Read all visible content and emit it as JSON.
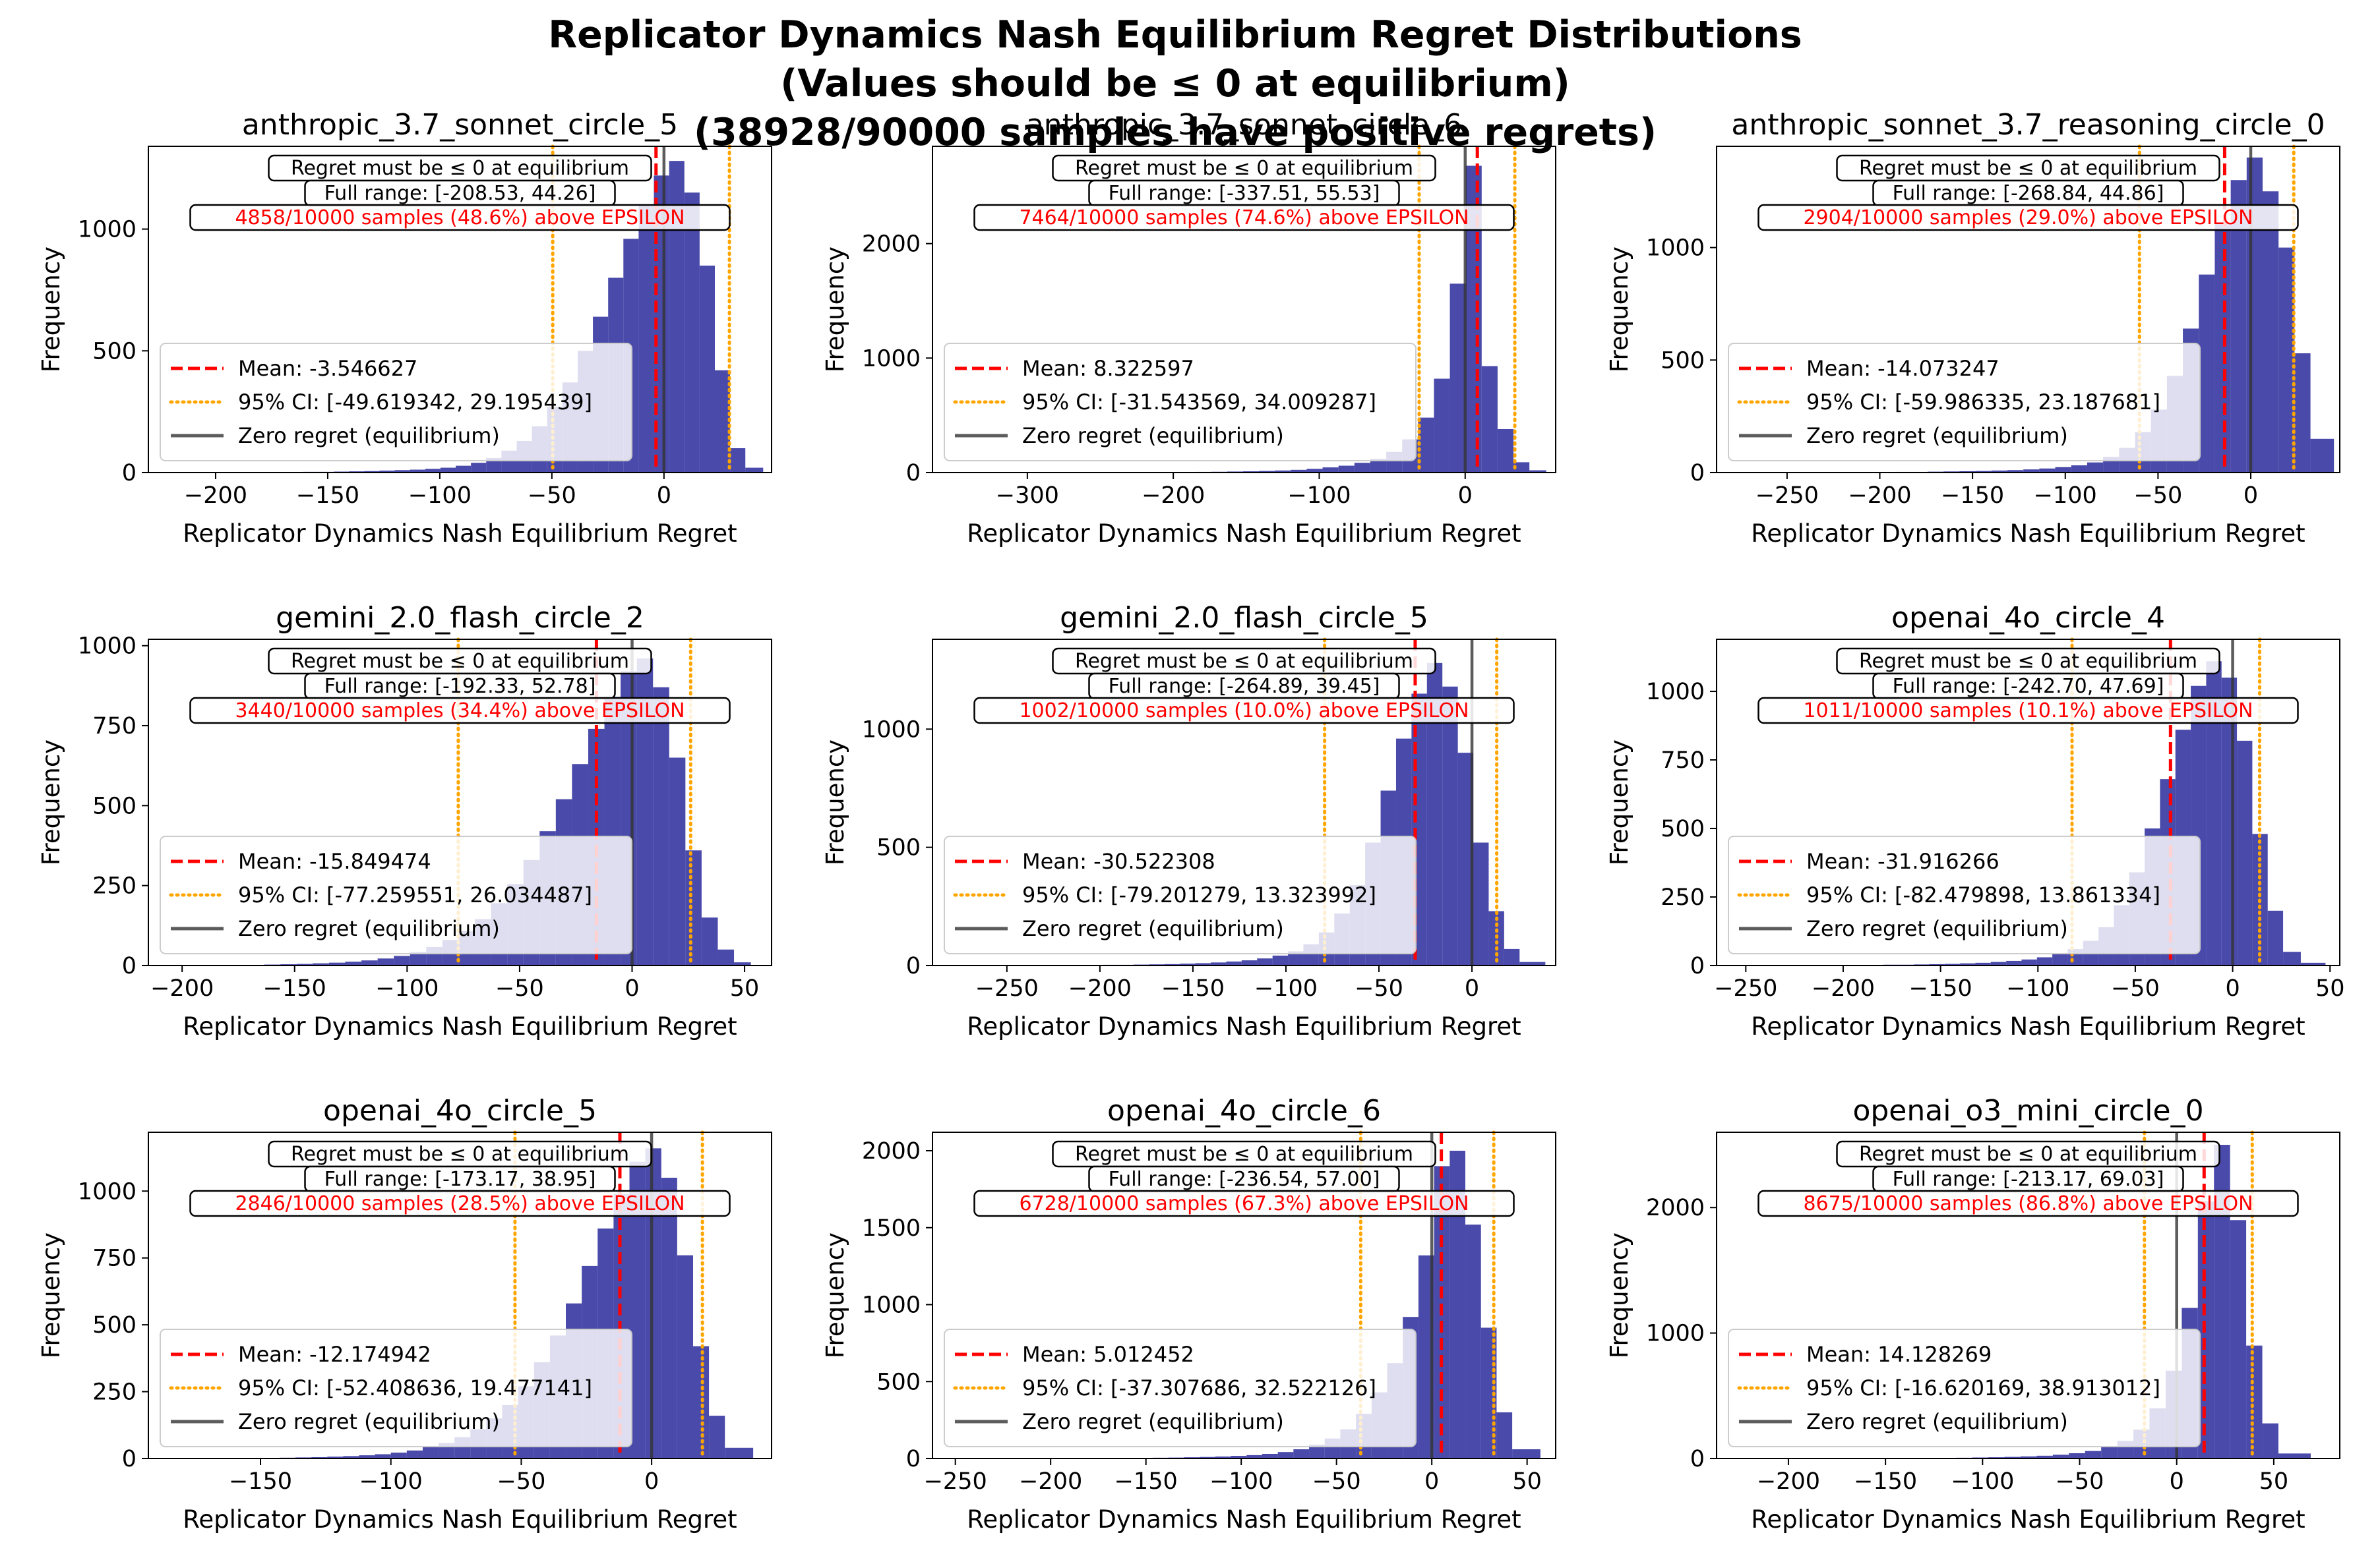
{
  "figure": {
    "title_lines": [
      "Replicator Dynamics Nash Equilibrium Regret Distributions",
      "(Values should be ≤ 0 at equilibrium)",
      "(38928/90000 samples have positive regrets)"
    ]
  },
  "colors": {
    "bars": "#2a2a9c",
    "mean": "#ff0000",
    "ci": "#ffa500",
    "zero": "#333333",
    "warning_text": "#ff0000"
  },
  "chart_data": [
    {
      "type": "histogram",
      "title": "anthropic_3.7_sonnet_circle_5",
      "xlabel": "Replicator Dynamics Nash Equilibrium Regret",
      "ylabel": "Frequency",
      "xlim": [
        -230,
        48
      ],
      "ylim": [
        0,
        1340
      ],
      "xticks": [
        -200,
        -150,
        -100,
        -50,
        0
      ],
      "yticks": [
        0,
        500,
        1000
      ],
      "bin_edges": [
        -208.53,
        -201.7,
        -194.9,
        -188.1,
        -181.3,
        -174.5,
        -167.7,
        -160.9,
        -154.1,
        -147.3,
        -140.5,
        -133.7,
        -126.9,
        -120.1,
        -113.3,
        -106.5,
        -99.7,
        -92.9,
        -86.1,
        -79.3,
        -72.5,
        -65.7,
        -58.9,
        -52.1,
        -45.3,
        -38.5,
        -31.7,
        -24.9,
        -18.1,
        -11.3,
        -4.5,
        2.3,
        9.1,
        15.9,
        22.7,
        29.5,
        36.3,
        44.26
      ],
      "counts": [
        1,
        1,
        1,
        1,
        1,
        2,
        2,
        3,
        3,
        4,
        5,
        6,
        8,
        10,
        12,
        15,
        20,
        28,
        40,
        60,
        90,
        130,
        190,
        270,
        370,
        500,
        640,
        800,
        960,
        1100,
        1220,
        1280,
        1150,
        850,
        420,
        100,
        20
      ],
      "mean": -3.546627,
      "ci": [
        -49.619342,
        29.195439
      ],
      "legend": [
        "Mean: -3.546627",
        "95% CI: [-49.619342, 29.195439]",
        "Zero regret (equilibrium)"
      ],
      "annotations": {
        "rule": "Regret must be ≤ 0 at equilibrium",
        "range": "Full range: [-208.53, 44.26]",
        "above": "4858/10000 samples (48.6%) above EPSILON"
      }
    },
    {
      "type": "histogram",
      "title": "anthropic_3.7_sonnet_circle_6",
      "xlabel": "Replicator Dynamics Nash Equilibrium Regret",
      "ylabel": "Frequency",
      "xlim": [
        -365,
        62
      ],
      "ylim": [
        0,
        2850
      ],
      "xticks": [
        -300,
        -200,
        -100,
        0
      ],
      "yticks": [
        0,
        1000,
        2000
      ],
      "bin_edges": [
        -337.51,
        -326.6,
        -315.7,
        -304.8,
        -293.9,
        -283.0,
        -272.1,
        -261.2,
        -250.3,
        -239.4,
        -228.5,
        -217.6,
        -206.7,
        -195.8,
        -184.9,
        -174.0,
        -163.1,
        -152.2,
        -141.3,
        -130.4,
        -119.5,
        -108.6,
        -97.7,
        -86.8,
        -75.9,
        -65.0,
        -54.1,
        -43.2,
        -32.3,
        -21.4,
        -10.5,
        0.4,
        11.3,
        22.2,
        33.1,
        44.0,
        55.53
      ],
      "counts": [
        1,
        1,
        1,
        1,
        1,
        1,
        1,
        2,
        2,
        2,
        3,
        3,
        4,
        5,
        6,
        7,
        9,
        11,
        14,
        18,
        24,
        32,
        45,
        60,
        85,
        120,
        180,
        290,
        480,
        820,
        1650,
        2680,
        930,
        380,
        90,
        20
      ],
      "mean": 8.322597,
      "ci": [
        -31.543569,
        34.009287
      ],
      "legend": [
        "Mean: 8.322597",
        "95% CI: [-31.543569, 34.009287]",
        "Zero regret (equilibrium)"
      ],
      "annotations": {
        "rule": "Regret must be ≤ 0 at equilibrium",
        "range": "Full range: [-337.51, 55.53]",
        "above": "7464/10000 samples (74.6%) above EPSILON"
      }
    },
    {
      "type": "histogram",
      "title": "anthropic_sonnet_3.7_reasoning_circle_0",
      "xlabel": "Replicator Dynamics Nash Equilibrium Regret",
      "ylabel": "Frequency",
      "xlim": [
        -288,
        48
      ],
      "ylim": [
        0,
        1450
      ],
      "xticks": [
        -250,
        -200,
        -150,
        -100,
        -50,
        0
      ],
      "yticks": [
        0,
        500,
        1000
      ],
      "bin_edges": [
        -268.84,
        -260.2,
        -251.6,
        -243.0,
        -234.4,
        -225.8,
        -217.2,
        -208.6,
        -200.0,
        -191.4,
        -182.8,
        -174.2,
        -165.6,
        -157.0,
        -148.4,
        -139.8,
        -131.2,
        -122.6,
        -114.0,
        -105.4,
        -96.8,
        -88.2,
        -79.6,
        -71.0,
        -62.4,
        -53.8,
        -45.2,
        -36.6,
        -28.0,
        -19.4,
        -10.8,
        -2.2,
        6.4,
        15.0,
        23.6,
        32.2,
        44.86
      ],
      "counts": [
        1,
        1,
        1,
        1,
        1,
        1,
        2,
        2,
        2,
        3,
        3,
        4,
        5,
        6,
        7,
        9,
        11,
        14,
        18,
        24,
        32,
        45,
        70,
        110,
        180,
        280,
        430,
        640,
        880,
        1110,
        1300,
        1400,
        1250,
        1000,
        530,
        150
      ],
      "mean": -14.073247,
      "ci": [
        -59.986335,
        23.187681
      ],
      "legend": [
        "Mean: -14.073247",
        "95% CI: [-59.986335, 23.187681]",
        "Zero regret (equilibrium)"
      ],
      "annotations": {
        "rule": "Regret must be ≤ 0 at equilibrium",
        "range": "Full range: [-268.84, 44.86]",
        "above": "2904/10000 samples (29.0%) above EPSILON"
      }
    },
    {
      "type": "histogram",
      "title": "gemini_2.0_flash_circle_2",
      "xlabel": "Replicator Dynamics Nash Equilibrium Regret",
      "ylabel": "Frequency",
      "xlim": [
        -215,
        62
      ],
      "ylim": [
        0,
        1020
      ],
      "xticks": [
        -200,
        -150,
        -100,
        -50,
        0,
        50
      ],
      "yticks": [
        0,
        250,
        500,
        750,
        1000
      ],
      "bin_edges": [
        -192.33,
        -185.1,
        -177.9,
        -170.7,
        -163.5,
        -156.3,
        -149.1,
        -141.9,
        -134.7,
        -127.5,
        -120.3,
        -113.1,
        -105.9,
        -98.7,
        -91.5,
        -84.3,
        -77.1,
        -69.9,
        -62.7,
        -55.5,
        -48.3,
        -41.1,
        -33.9,
        -26.7,
        -19.5,
        -12.3,
        -5.1,
        2.1,
        9.3,
        16.5,
        23.7,
        30.9,
        38.1,
        45.3,
        52.78
      ],
      "counts": [
        1,
        1,
        2,
        2,
        3,
        4,
        5,
        7,
        9,
        12,
        16,
        22,
        30,
        42,
        58,
        80,
        108,
        145,
        195,
        255,
        330,
        420,
        520,
        630,
        740,
        840,
        920,
        960,
        870,
        650,
        360,
        150,
        50,
        10
      ],
      "mean": -15.849474,
      "ci": [
        -77.259551,
        26.034487
      ],
      "legend": [
        "Mean: -15.849474",
        "95% CI: [-77.259551, 26.034487]",
        "Zero regret (equilibrium)"
      ],
      "annotations": {
        "rule": "Regret must be ≤ 0 at equilibrium",
        "range": "Full range: [-192.33, 52.78]",
        "above": "3440/10000 samples (34.4%) above EPSILON"
      }
    },
    {
      "type": "histogram",
      "title": "gemini_2.0_flash_circle_5",
      "xlabel": "Replicator Dynamics Nash Equilibrium Regret",
      "ylabel": "Frequency",
      "xlim": [
        -290,
        45
      ],
      "ylim": [
        0,
        1380
      ],
      "xticks": [
        -250,
        -200,
        -150,
        -100,
        -50,
        0
      ],
      "yticks": [
        0,
        500,
        1000
      ],
      "bin_edges": [
        -264.89,
        -256.6,
        -248.3,
        -240.0,
        -231.7,
        -223.4,
        -215.1,
        -206.8,
        -198.5,
        -190.2,
        -181.9,
        -173.6,
        -165.3,
        -157.0,
        -148.7,
        -140.4,
        -132.1,
        -123.8,
        -115.5,
        -107.2,
        -98.9,
        -90.6,
        -82.3,
        -74.0,
        -65.7,
        -57.4,
        -49.1,
        -40.8,
        -32.5,
        -24.2,
        -15.9,
        -7.6,
        0.7,
        9.0,
        17.3,
        25.6,
        39.45
      ],
      "counts": [
        1,
        1,
        1,
        1,
        1,
        2,
        2,
        2,
        3,
        3,
        4,
        5,
        6,
        8,
        10,
        13,
        17,
        22,
        30,
        42,
        60,
        90,
        140,
        220,
        340,
        520,
        740,
        960,
        1150,
        1280,
        1180,
        900,
        520,
        230,
        70,
        15
      ],
      "mean": -30.522308,
      "ci": [
        -79.201279,
        13.323992
      ],
      "legend": [
        "Mean: -30.522308",
        "95% CI: [-79.201279, 13.323992]",
        "Zero regret (equilibrium)"
      ],
      "annotations": {
        "rule": "Regret must be ≤ 0 at equilibrium",
        "range": "Full range: [-264.89, 39.45]",
        "above": "1002/10000 samples (10.0%) above EPSILON"
      }
    },
    {
      "type": "histogram",
      "title": "openai_4o_circle_4",
      "xlabel": "Replicator Dynamics Nash Equilibrium Regret",
      "ylabel": "Frequency",
      "xlim": [
        -265,
        55
      ],
      "ylim": [
        0,
        1190
      ],
      "xticks": [
        -250,
        -200,
        -150,
        -100,
        -50,
        0,
        50
      ],
      "yticks": [
        0,
        250,
        500,
        750,
        1000
      ],
      "bin_edges": [
        -242.7,
        -234.8,
        -226.9,
        -219.0,
        -211.1,
        -203.2,
        -195.3,
        -187.4,
        -179.5,
        -171.6,
        -163.7,
        -155.8,
        -147.9,
        -140.0,
        -132.1,
        -124.2,
        -116.3,
        -108.4,
        -100.5,
        -92.6,
        -84.7,
        -76.8,
        -68.9,
        -61.0,
        -53.1,
        -45.2,
        -37.3,
        -29.4,
        -21.5,
        -13.6,
        -5.7,
        2.2,
        10.1,
        18.0,
        25.9,
        35.0,
        47.69
      ],
      "counts": [
        1,
        1,
        1,
        1,
        1,
        2,
        2,
        2,
        3,
        3,
        4,
        5,
        6,
        8,
        10,
        13,
        17,
        22,
        30,
        42,
        60,
        90,
        140,
        220,
        340,
        500,
        680,
        860,
        1020,
        1110,
        1050,
        820,
        480,
        200,
        50,
        10
      ],
      "mean": -31.916266,
      "ci": [
        -82.479898,
        13.861334
      ],
      "legend": [
        "Mean: -31.916266",
        "95% CI: [-82.479898, 13.861334]",
        "Zero regret (equilibrium)"
      ],
      "annotations": {
        "rule": "Regret must be ≤ 0 at equilibrium",
        "range": "Full range: [-242.70, 47.69]",
        "above": "1011/10000 samples (10.1%) above EPSILON"
      }
    },
    {
      "type": "histogram",
      "title": "openai_4o_circle_5",
      "xlabel": "Replicator Dynamics Nash Equilibrium Regret",
      "ylabel": "Frequency",
      "xlim": [
        -193,
        46
      ],
      "ylim": [
        0,
        1220
      ],
      "xticks": [
        -150,
        -100,
        -50,
        0
      ],
      "yticks": [
        0,
        250,
        500,
        750,
        1000
      ],
      "bin_edges": [
        -173.17,
        -167.1,
        -161.0,
        -154.9,
        -148.8,
        -142.7,
        -136.6,
        -130.5,
        -124.4,
        -118.3,
        -112.2,
        -106.1,
        -100.0,
        -93.9,
        -87.8,
        -81.7,
        -75.6,
        -69.5,
        -63.4,
        -57.3,
        -51.2,
        -45.1,
        -39.0,
        -32.9,
        -26.8,
        -20.7,
        -14.6,
        -8.5,
        -2.4,
        3.7,
        9.8,
        15.9,
        22.0,
        28.1,
        38.95
      ],
      "counts": [
        1,
        1,
        1,
        2,
        2,
        3,
        4,
        5,
        7,
        9,
        12,
        16,
        22,
        30,
        42,
        58,
        80,
        110,
        150,
        200,
        270,
        360,
        460,
        580,
        720,
        860,
        990,
        1110,
        1160,
        1050,
        760,
        420,
        160,
        40
      ],
      "mean": -12.174942,
      "ci": [
        -52.408636,
        19.477141
      ],
      "legend": [
        "Mean: -12.174942",
        "95% CI: [-52.408636, 19.477141]",
        "Zero regret (equilibrium)"
      ],
      "annotations": {
        "rule": "Regret must be ≤ 0 at equilibrium",
        "range": "Full range: [-173.17, 38.95]",
        "above": "2846/10000 samples (28.5%) above EPSILON"
      }
    },
    {
      "type": "histogram",
      "title": "openai_4o_circle_6",
      "xlabel": "Replicator Dynamics Nash Equilibrium Regret",
      "ylabel": "Frequency",
      "xlim": [
        -262,
        65
      ],
      "ylim": [
        0,
        2120
      ],
      "xticks": [
        -250,
        -200,
        -150,
        -100,
        -50,
        0,
        50
      ],
      "yticks": [
        0,
        500,
        1000,
        1500,
        2000
      ],
      "bin_edges": [
        -236.54,
        -228.4,
        -220.2,
        -212.0,
        -203.8,
        -195.6,
        -187.4,
        -179.2,
        -171.0,
        -162.8,
        -154.6,
        -146.4,
        -138.2,
        -130.0,
        -121.8,
        -113.6,
        -105.4,
        -97.2,
        -89.0,
        -80.8,
        -72.6,
        -64.4,
        -56.2,
        -48.0,
        -39.8,
        -31.6,
        -23.4,
        -15.2,
        -7.0,
        1.2,
        9.4,
        17.6,
        25.8,
        34.0,
        42.2,
        57.0
      ],
      "counts": [
        1,
        1,
        1,
        1,
        1,
        2,
        2,
        2,
        3,
        3,
        4,
        5,
        6,
        8,
        10,
        13,
        17,
        22,
        30,
        42,
        60,
        90,
        130,
        190,
        290,
        430,
        620,
        920,
        1320,
        1900,
        2000,
        1520,
        850,
        300,
        60
      ],
      "mean": 5.012452,
      "ci": [
        -37.307686,
        32.522126
      ],
      "legend": [
        "Mean: 5.012452",
        "95% CI: [-37.307686, 32.522126]",
        "Zero regret (equilibrium)"
      ],
      "annotations": {
        "rule": "Regret must be ≤ 0 at equilibrium",
        "range": "Full range: [-236.54, 57.00]",
        "above": "6728/10000 samples (67.3%) above EPSILON"
      }
    },
    {
      "type": "histogram",
      "title": "openai_o3_mini_circle_0",
      "xlabel": "Replicator Dynamics Nash Equilibrium Regret",
      "ylabel": "Frequency",
      "xlim": [
        -237,
        84
      ],
      "ylim": [
        0,
        2600
      ],
      "xticks": [
        -200,
        -150,
        -100,
        -50,
        0,
        50
      ],
      "yticks": [
        0,
        1000,
        2000
      ],
      "bin_edges": [
        -213.17,
        -204.9,
        -196.6,
        -188.3,
        -180.0,
        -171.7,
        -163.4,
        -155.1,
        -146.8,
        -138.5,
        -130.2,
        -121.9,
        -113.6,
        -105.3,
        -97.0,
        -88.7,
        -80.4,
        -72.1,
        -63.8,
        -55.5,
        -47.2,
        -38.9,
        -30.6,
        -22.3,
        -14.0,
        -5.7,
        2.6,
        10.9,
        19.2,
        27.5,
        35.8,
        44.1,
        52.4,
        69.03
      ],
      "counts": [
        1,
        1,
        1,
        1,
        1,
        2,
        2,
        2,
        3,
        3,
        4,
        5,
        6,
        8,
        10,
        13,
        17,
        22,
        30,
        42,
        60,
        90,
        140,
        230,
        400,
        700,
        1200,
        2050,
        2500,
        1900,
        900,
        280,
        40
      ],
      "mean": 14.128269,
      "ci": [
        -16.620169,
        38.913012
      ],
      "legend": [
        "Mean: 14.128269",
        "95% CI: [-16.620169, 38.913012]",
        "Zero regret (equilibrium)"
      ],
      "annotations": {
        "rule": "Regret must be ≤ 0 at equilibrium",
        "range": "Full range: [-213.17, 69.03]",
        "above": "8675/10000 samples (86.8%) above EPSILON"
      }
    }
  ]
}
